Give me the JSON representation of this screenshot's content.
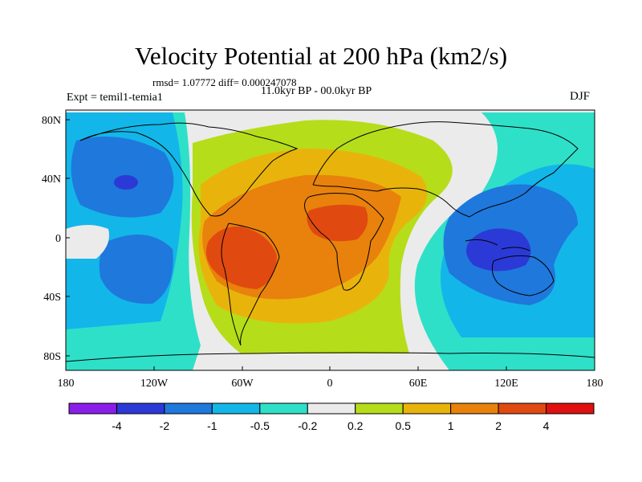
{
  "title": "Velocity Potential at 200 hPa (km2/s)",
  "stats": "rmsd= 1.07772 diff= 0.000247078",
  "period": "11.0kyr BP - 00.0kyr BP",
  "experiment": "Expt = temil1-temia1",
  "season": "DJF",
  "axes": {
    "x_ticks": [
      "180",
      "120W",
      "60W",
      "0",
      "60E",
      "120E",
      "180"
    ],
    "y_ticks": [
      "80N",
      "40N",
      "0",
      "40S",
      "80S"
    ]
  },
  "colorbar": {
    "labels": [
      "-4",
      "-2",
      "-1",
      "-0.5",
      "-0.2",
      "0.2",
      "0.5",
      "1",
      "2",
      "4"
    ],
    "colors": [
      "#8a1ee8",
      "#2b3ad6",
      "#1f78dc",
      "#13b6e8",
      "#2fe0c8",
      "#ebebeb",
      "#b6dd1a",
      "#e8b40c",
      "#e8820c",
      "#e04a10",
      "#e01010"
    ]
  },
  "map_colors": {
    "ocean_base": "#ebebeb",
    "coast": "#000000"
  }
}
